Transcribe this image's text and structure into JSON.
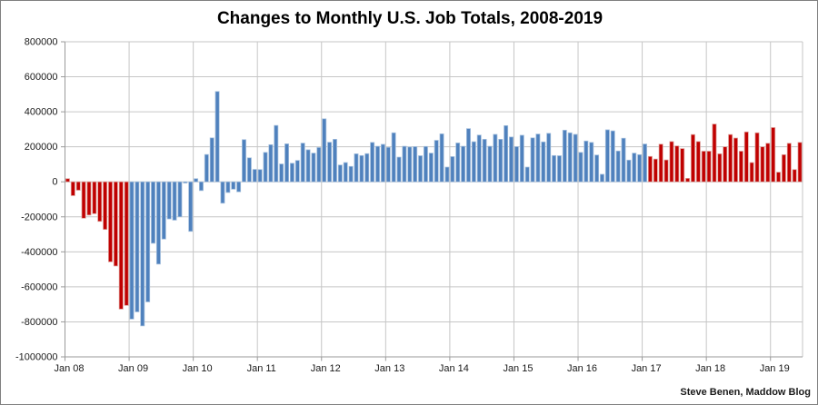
{
  "chart_data": {
    "type": "bar",
    "title": "Changes to Monthly U.S. Job Totals, 2008-2019",
    "source": "Steve Benen, Maddow Blog",
    "y_axis": {
      "min": -1000000,
      "max": 800000,
      "tick_interval": 200000,
      "tick_labels": [
        "800000",
        "600000",
        "400000",
        "200000",
        "0",
        "-200000",
        "-400000",
        "-600000",
        "-800000",
        "-1000000"
      ]
    },
    "x_axis": {
      "tick_labels": [
        "Jan 08",
        "Jan 09",
        "Jan 10",
        "Jan 11",
        "Jan 12",
        "Jan 13",
        "Jan 14",
        "Jan 15",
        "Jan 16",
        "Jan 17",
        "Jan 18",
        "Jan 19"
      ],
      "months_per_tick": 12
    },
    "grid": true,
    "legend": "none",
    "colors": {
      "red_bar": "#C00000",
      "red_bar_edge": "#DFA09B",
      "blue_bar": "#4F81BD",
      "blue_bar_edge": "#A5C0DE",
      "gridline": "#C6C6C6",
      "axis_line": "#9A9A9A",
      "label_text": "#1A1A1A"
    },
    "series": [
      {
        "name": "red-segment-2008",
        "color_key": "red_bar",
        "start_index": 0,
        "values": [
          18000,
          -79000,
          -48000,
          -208000,
          -190000,
          -182000,
          -226000,
          -272000,
          -457000,
          -481000,
          -727000,
          -706000
        ]
      },
      {
        "name": "blue-segment-jan2009-jan2017",
        "color_key": "blue_bar",
        "start_index": 12,
        "values": [
          -784000,
          -743000,
          -823000,
          -686000,
          -351000,
          -470000,
          -327000,
          -212000,
          -219000,
          -200000,
          -7000,
          -283000,
          18000,
          -50000,
          156000,
          251000,
          516000,
          -122000,
          -61000,
          -42000,
          -57000,
          241000,
          137000,
          71000,
          70000,
          168000,
          212000,
          322000,
          102000,
          217000,
          106000,
          122000,
          221000,
          183000,
          164000,
          196000,
          360000,
          226000,
          243000,
          96000,
          110000,
          88000,
          160000,
          150000,
          161000,
          225000,
          203000,
          214000,
          197000,
          280000,
          141000,
          203000,
          199000,
          201000,
          149000,
          202000,
          164000,
          237000,
          274000,
          84000,
          144000,
          222000,
          203000,
          304000,
          229000,
          267000,
          243000,
          203000,
          271000,
          243000,
          321000,
          256000,
          201000,
          266000,
          84000,
          251000,
          273000,
          228000,
          277000,
          150000,
          149000,
          295000,
          280000,
          271000,
          168000,
          233000,
          225000,
          153000,
          43000,
          297000,
          291000,
          176000,
          249000,
          124000,
          164000,
          155000,
          216000
        ]
      },
      {
        "name": "red-segment-feb2017-jun2019",
        "color_key": "red_bar",
        "start_index": 109,
        "values": [
          145000,
          130000,
          215000,
          125000,
          230000,
          205000,
          190000,
          20000,
          270000,
          230000,
          175000,
          175000,
          330000,
          160000,
          200000,
          270000,
          250000,
          175000,
          285000,
          110000,
          280000,
          200000,
          220000,
          310000,
          55000,
          155000,
          220000,
          70000,
          225000
        ]
      }
    ]
  }
}
